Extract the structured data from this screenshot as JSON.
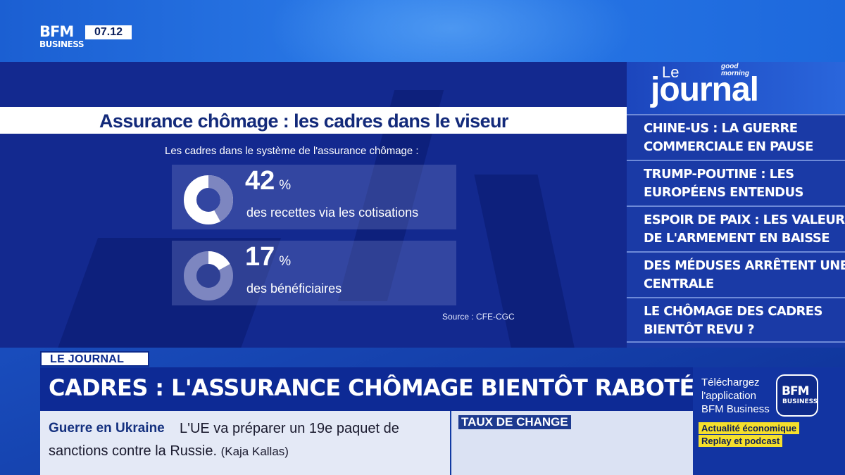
{
  "channel": {
    "logo_line1": "BFM",
    "logo_line2": "BUSINESS",
    "time": "07.12"
  },
  "graphic": {
    "headline": "Assurance chômage : les cadres dans le viseur",
    "subtitle": "Les cadres dans le système de l'assurance chômage :",
    "stats": [
      {
        "value": "42",
        "unit": "%",
        "label": "des recettes via les cotisations",
        "percent": 42
      },
      {
        "value": "17",
        "unit": "%",
        "label": "des bénéficiaires",
        "percent": 17
      }
    ],
    "source": "Source : CFE-CGC"
  },
  "journal": {
    "le": "Le",
    "title": "journal",
    "sponsor_line1": "good",
    "sponsor_line2": "morning",
    "items": [
      {
        "line1": "CHINE-US : LA GUERRE",
        "line2": "COMMERCIALE EN PAUSE"
      },
      {
        "line1": "TRUMP-POUTINE : LES",
        "line2": "EUROPÉENS ENTENDUS"
      },
      {
        "line1": "ESPOIR DE PAIX : LES VALEURS",
        "line2": "DE L'ARMEMENT EN BAISSE"
      },
      {
        "line1": "DES MÉDUSES ARRÊTENT UNE",
        "line2": "CENTRALE"
      },
      {
        "line1": "LE CHÔMAGE DES CADRES",
        "line2": "BIENTÔT REVU ?"
      }
    ]
  },
  "lower_third": {
    "tag": "LE JOURNAL",
    "headline": "CADRES : L'ASSURANCE CHÔMAGE BIENTÔT RABOTÉE ?"
  },
  "ticker": {
    "topic": "Guerre en Ukraine",
    "text1": "L'UE va préparer un 19e paquet de",
    "text2": "sanctions contre la Russie.",
    "attribution": "(Kaja Kallas)"
  },
  "taux": {
    "label": "TAUX DE CHANGE"
  },
  "promo": {
    "line1": "Téléchargez",
    "line2": "l'application",
    "line3": "BFM Business",
    "app_line1": "BFM",
    "app_line2": "BUSINESS",
    "tag1": "Actualité économique",
    "tag2": "Replay et podcast"
  },
  "colors": {
    "navy": "#0d2a95",
    "accent_yellow": "#f5df2c",
    "white": "#ffffff"
  },
  "icons": {
    "donut": "donut-chart-icon"
  }
}
